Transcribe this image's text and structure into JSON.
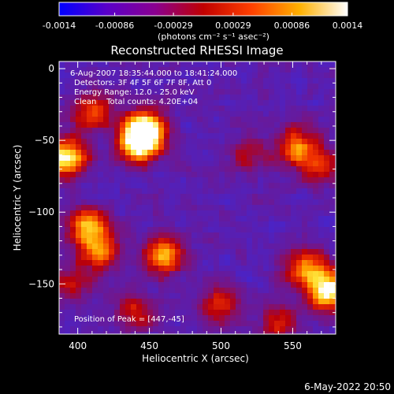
{
  "colorbar": {
    "tick_labels": [
      "-0.0014",
      "-0.00086",
      "-0.00029",
      "0.00029",
      "0.00086",
      "0.0014"
    ],
    "tick_values": [
      -0.0014,
      -0.00086,
      -0.00029,
      0.00029,
      0.00086,
      0.0014
    ],
    "range": [
      -0.0014,
      0.0014
    ],
    "unit_label": "(photons cm⁻² s⁻¹ asec⁻²)",
    "colormap": [
      "#0000ff",
      "#5a00c8",
      "#8a0090",
      "#c00000",
      "#ff4000",
      "#ffb000",
      "#ffffff"
    ]
  },
  "chart_data": {
    "type": "heatmap",
    "title": "Reconstructed RHESSI Image",
    "xlabel": "Heliocentric X (arcsec)",
    "ylabel": "Heliocentric Y (arcsec)",
    "xlim": [
      387,
      580
    ],
    "ylim": [
      -185,
      5
    ],
    "x_ticks": [
      400,
      450,
      500,
      550
    ],
    "x_tick_labels": [
      "400",
      "450",
      "500",
      "550"
    ],
    "y_ticks": [
      0,
      -50,
      -100,
      -150
    ],
    "y_tick_labels": [
      "0",
      "−50",
      "−100",
      "−150"
    ],
    "annotations": [
      "6-Aug-2007 18:35:44.000 to 18:41:24.000",
      "Detectors: 3F 4F 5F 6F 7F 8F, Att 0",
      "Energy Range: 12.0 - 25.0 keV",
      "Clean    Total counts: 4.20E+04"
    ],
    "peak_label": "Position of Peak = [447,-45]",
    "peak": [
      447,
      -45
    ],
    "sources": [
      {
        "x": 447,
        "y": -43,
        "intensity": 1.0
      },
      {
        "x": 442,
        "y": -52,
        "intensity": 0.85
      },
      {
        "x": 392,
        "y": -62,
        "intensity": 0.9
      },
      {
        "x": 575,
        "y": -155,
        "intensity": 0.95
      },
      {
        "x": 560,
        "y": -140,
        "intensity": 0.7
      },
      {
        "x": 408,
        "y": -110,
        "intensity": 0.75
      },
      {
        "x": 415,
        "y": -128,
        "intensity": 0.55
      },
      {
        "x": 460,
        "y": -130,
        "intensity": 0.7
      },
      {
        "x": 553,
        "y": -55,
        "intensity": 0.65
      },
      {
        "x": 570,
        "y": -68,
        "intensity": 0.45
      },
      {
        "x": 410,
        "y": -30,
        "intensity": 0.55
      },
      {
        "x": 500,
        "y": -165,
        "intensity": 0.45
      },
      {
        "x": 540,
        "y": -178,
        "intensity": 0.4
      },
      {
        "x": 440,
        "y": -170,
        "intensity": 0.35
      },
      {
        "x": 520,
        "y": -60,
        "intensity": 0.3
      },
      {
        "x": 395,
        "y": -150,
        "intensity": 0.35
      }
    ]
  },
  "footer_timestamp": "6-May-2022 20:50"
}
